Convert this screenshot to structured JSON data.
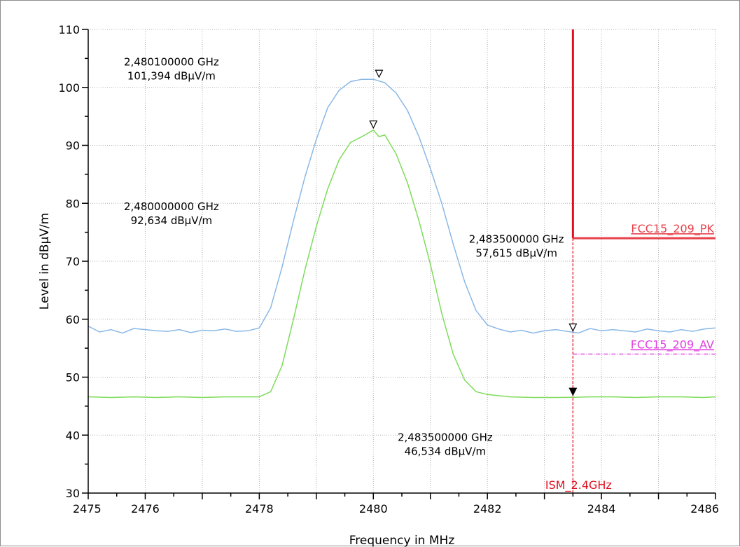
{
  "chart_data": {
    "type": "line",
    "xlabel": "Frequency in MHz",
    "ylabel": "Level in dBµV/m",
    "xlim": [
      2475,
      2486
    ],
    "ylim": [
      30,
      110
    ],
    "x_ticks": [
      "2475",
      "2476",
      "2478",
      "2480",
      "2482",
      "2484",
      "2486"
    ],
    "x_tick_values": [
      2475,
      2476,
      2478,
      2480,
      2482,
      2484,
      2486
    ],
    "y_ticks": [
      "110",
      "100",
      "90",
      "80",
      "70",
      "60",
      "50",
      "40",
      "30"
    ],
    "y_tick_values": [
      110,
      100,
      90,
      80,
      70,
      60,
      50,
      40,
      30
    ],
    "grid": true,
    "colors": {
      "peak_trace": "#8ab8e6",
      "average_trace": "#7fdc5a",
      "pk_limit": "#e8404a",
      "av_limit": "#e040e0",
      "band_edge": "#e01020"
    },
    "series": [
      {
        "id": "peak",
        "x": [
          2475.0,
          2475.2,
          2475.4,
          2475.6,
          2475.8,
          2476.0,
          2476.2,
          2476.4,
          2476.6,
          2476.8,
          2477.0,
          2477.2,
          2477.4,
          2477.6,
          2477.8,
          2478.0,
          2478.2,
          2478.4,
          2478.6,
          2478.8,
          2479.0,
          2479.2,
          2479.4,
          2479.6,
          2479.8,
          2480.0,
          2480.2,
          2480.4,
          2480.6,
          2480.8,
          2481.0,
          2481.2,
          2481.4,
          2481.6,
          2481.8,
          2482.0,
          2482.2,
          2482.4,
          2482.6,
          2482.8,
          2483.0,
          2483.2,
          2483.4,
          2483.6,
          2483.8,
          2484.0,
          2484.2,
          2484.4,
          2484.6,
          2484.8,
          2485.0,
          2485.2,
          2485.4,
          2485.6,
          2485.8,
          2486.0
        ],
        "y": [
          58.8,
          57.8,
          58.2,
          57.6,
          58.4,
          58.2,
          58.0,
          57.9,
          58.2,
          57.7,
          58.1,
          58.0,
          58.3,
          57.9,
          58.0,
          58.5,
          62.0,
          69.0,
          77.0,
          84.5,
          91.0,
          96.5,
          99.5,
          101.0,
          101.4,
          101.394,
          100.8,
          99.0,
          96.0,
          91.5,
          86.0,
          80.0,
          73.0,
          66.5,
          61.5,
          59.0,
          58.3,
          57.8,
          58.1,
          57.6,
          58.0,
          58.2,
          57.9,
          57.615,
          58.4,
          58.0,
          58.2,
          58.0,
          57.8,
          58.3,
          58.0,
          57.8,
          58.2,
          57.9,
          58.3,
          58.5
        ]
      },
      {
        "id": "average",
        "x": [
          2475.0,
          2475.4,
          2475.8,
          2476.2,
          2476.6,
          2477.0,
          2477.4,
          2477.8,
          2478.0,
          2478.2,
          2478.4,
          2478.6,
          2478.8,
          2479.0,
          2479.2,
          2479.4,
          2479.6,
          2479.8,
          2480.0,
          2480.1,
          2480.2,
          2480.4,
          2480.6,
          2480.8,
          2481.0,
          2481.2,
          2481.4,
          2481.6,
          2481.8,
          2482.0,
          2482.4,
          2482.8,
          2483.2,
          2483.5,
          2483.8,
          2484.2,
          2484.6,
          2485.0,
          2485.4,
          2485.8,
          2486.0
        ],
        "y": [
          46.6,
          46.5,
          46.6,
          46.5,
          46.6,
          46.5,
          46.6,
          46.6,
          46.6,
          47.5,
          52.0,
          60.0,
          68.5,
          76.0,
          82.5,
          87.5,
          90.5,
          91.5,
          92.634,
          91.5,
          91.8,
          88.5,
          83.5,
          77.0,
          69.5,
          61.0,
          54.0,
          49.5,
          47.5,
          47.0,
          46.6,
          46.5,
          46.5,
          46.534,
          46.6,
          46.6,
          46.5,
          46.6,
          46.6,
          46.5,
          46.6
        ]
      }
    ],
    "limits": [
      {
        "id": "pk",
        "label": "FCC15_209_PK",
        "y": 73.98,
        "x_start": 2483.5,
        "x_end": 2486
      },
      {
        "id": "av",
        "label": "FCC15_209_AV",
        "y": 53.98,
        "x_start": 2483.5,
        "x_end": 2486
      }
    ],
    "band_edge": {
      "x": 2483.5,
      "label": "ISM_2.4GHz",
      "top": 110,
      "limit_drop_to": 73.98
    },
    "markers": [
      {
        "id": "m1",
        "x": 2480.1,
        "y": 101.394,
        "filled": false,
        "line1": "2,480100000 GHz",
        "line2": "101,394 dBµV/m",
        "label_x": 2475.6,
        "label_y": 103.8
      },
      {
        "id": "m2",
        "x": 2480.0,
        "y": 92.634,
        "filled": false,
        "line1": "2,480000000 GHz",
        "line2": "92,634 dBµV/m",
        "label_x": 2475.6,
        "label_y": 78.8
      },
      {
        "id": "m3",
        "x": 2483.5,
        "y": 57.615,
        "filled": false,
        "line1": "2,483500000 GHz",
        "line2": "57,615 dBµV/m",
        "label_x": 2481.65,
        "label_y": 73.2
      },
      {
        "id": "m4",
        "x": 2483.5,
        "y": 46.534,
        "filled": true,
        "line1": "2,483500000 GHz",
        "line2": "46,534 dBµV/m",
        "label_x": 2480.4,
        "label_y": 39.0
      }
    ]
  }
}
